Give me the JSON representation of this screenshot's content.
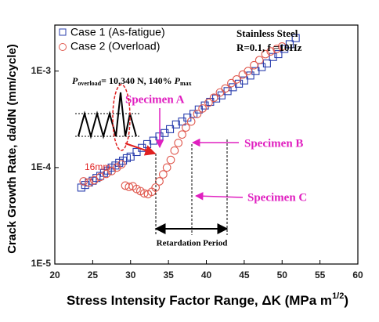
{
  "chart_data": {
    "type": "scatter",
    "x_label": [
      "Stress Intensity Factor Range, ΔK (MPa m",
      "1/2",
      ")"
    ],
    "y_label": "Crack Growth Rate, da/dN (mm/cycle)",
    "log_y": true,
    "legend": "top-left",
    "xlim": [
      20,
      60
    ],
    "xticks": [
      20,
      25,
      30,
      35,
      40,
      45,
      50,
      55,
      60
    ],
    "ylim": [
      1e-05,
      0.003
    ],
    "yticks": [
      {
        "value": 1e-05,
        "label": "1E-5"
      },
      {
        "value": 0.0001,
        "label": "1E-4"
      },
      {
        "value": 0.001,
        "label": "1E-3"
      }
    ],
    "annotations": {
      "material": "Stainless Steel",
      "conditions": "R=0.1, f =10Hz",
      "overload": [
        "P",
        "overload",
        "= 10,340 N, 140% ",
        "P",
        "max"
      ],
      "specimen_a": "Specimen A",
      "specimen_b": "Specimen B",
      "specimen_c": "Specimen C",
      "retardation": "Retardation Period",
      "length": "16mm"
    },
    "series": [
      {
        "name": "Case 1 (As-fatigue)",
        "color": "#2b3fae",
        "marker": "square",
        "x": [
          23.5,
          24.0,
          24.5,
          25.0,
          25.5,
          26.0,
          26.5,
          27.0,
          27.5,
          28.0,
          28.5,
          29.0,
          29.5,
          30.0,
          30.8,
          31.5,
          32.2,
          33.0,
          33.8,
          34.5,
          35.2,
          36.0,
          36.8,
          37.5,
          38.3,
          39.0,
          39.8,
          40.5,
          41.3,
          42.0,
          42.8,
          43.5,
          44.3,
          45.0,
          45.8,
          46.5,
          47.3,
          48.0,
          48.8,
          49.5,
          50.3,
          51.0,
          51.8
        ],
        "values": [
          6.2e-05,
          6.6e-05,
          7e-05,
          7.3e-05,
          7.8e-05,
          8.2e-05,
          8.8e-05,
          9.3e-05,
          0.0001,
          0.000105,
          0.000112,
          0.000118,
          0.000125,
          0.00013,
          0.000145,
          0.00016,
          0.000175,
          0.00019,
          0.00021,
          0.000228,
          0.00025,
          0.00028,
          0.0003,
          0.00033,
          0.00036,
          0.0004,
          0.00044,
          0.00048,
          0.00052,
          0.00056,
          0.00062,
          0.00068,
          0.00074,
          0.0008,
          0.0009,
          0.001,
          0.0011,
          0.0012,
          0.0014,
          0.0015,
          0.0017,
          0.0019,
          0.0022
        ]
      },
      {
        "name": "Case 2 (Overload)",
        "color": "#e05a50",
        "marker": "circle",
        "x": [
          23.8,
          24.5,
          25.2,
          26.0,
          26.8,
          27.5,
          28.2,
          28.8,
          29.3,
          29.8,
          30.3,
          30.8,
          31.3,
          31.8,
          32.3,
          32.8,
          33.3,
          33.8,
          34.3,
          34.8,
          35.3,
          35.8,
          36.3,
          36.8,
          37.3,
          38.0,
          38.8,
          39.5,
          40.3,
          41.0,
          41.8,
          42.5,
          43.3,
          44.0,
          44.8,
          45.5,
          46.3,
          47.0,
          47.8,
          48.5,
          49.3,
          50.0
        ],
        "values": [
          7.2e-05,
          7e-05,
          7.4e-05,
          8e-05,
          8.6e-05,
          9.2e-05,
          0.0001,
          0.000108,
          6.5e-05,
          6.3e-05,
          6.4e-05,
          6e-05,
          5.7e-05,
          5.4e-05,
          5.3e-05,
          5.6e-05,
          6.2e-05,
          7.2e-05,
          8.5e-05,
          0.0001,
          0.00012,
          0.00015,
          0.00018,
          0.00022,
          0.00026,
          0.0003,
          0.00036,
          0.00041,
          0.00047,
          0.00053,
          0.0006,
          0.00066,
          0.00075,
          0.00082,
          0.00092,
          0.001,
          0.00115,
          0.0013,
          0.0015,
          0.0016,
          0.0017,
          0.0018
        ]
      }
    ]
  }
}
